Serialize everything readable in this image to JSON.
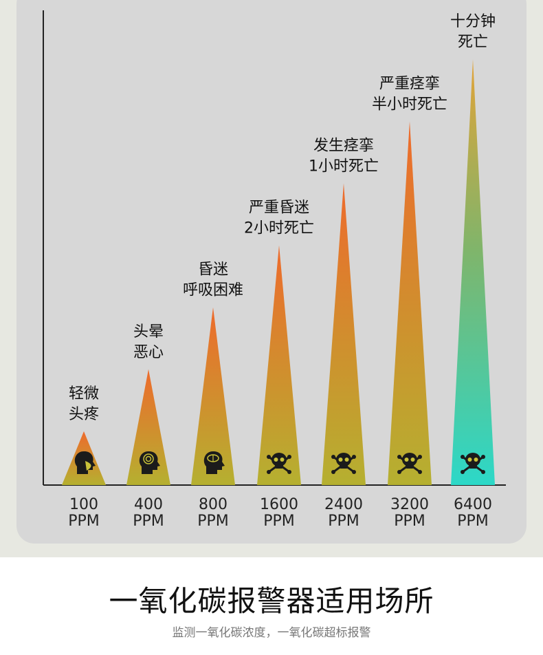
{
  "chart_data": {
    "type": "bar",
    "categories": [
      "100\nPPM",
      "400\nPPM",
      "800\nPPM",
      "1600\nPPM",
      "2400\nPPM",
      "3200\nPPM",
      "6400\nPPM"
    ],
    "labels": [
      [
        "轻微",
        "头疼"
      ],
      [
        "头晕",
        "恶心"
      ],
      [
        "昏迷",
        "呼吸困难"
      ],
      [
        "严重昏迷",
        "2小时死亡"
      ],
      [
        "发生痉挛",
        "1小时死亡"
      ],
      [
        "严重痉挛",
        "半小时死亡"
      ],
      [
        "十分钟",
        "死亡"
      ]
    ],
    "icons": [
      "mask-head-icon",
      "dizzy-head-icon",
      "brain-head-icon",
      "skull-icon",
      "skull-icon",
      "skull-icon",
      "skull-icon"
    ],
    "values": [
      1,
      2,
      3,
      4,
      5,
      6,
      7
    ],
    "ylim": [
      0,
      8
    ],
    "grid": false,
    "colors": {
      "top": "#ee6a2c",
      "bottom": "#b5b030",
      "last_top": "#e2a338",
      "last_mid": "#7fb56b",
      "last_bottom": "#2cd8c8",
      "axis": "#222222",
      "label": "#111111",
      "icon": "#1b1b1b"
    }
  },
  "footer": {
    "title": "一氧化碳报警器适用场所",
    "subtitle": "监测一氧化碳浓度，一氧化碳超标报警"
  }
}
